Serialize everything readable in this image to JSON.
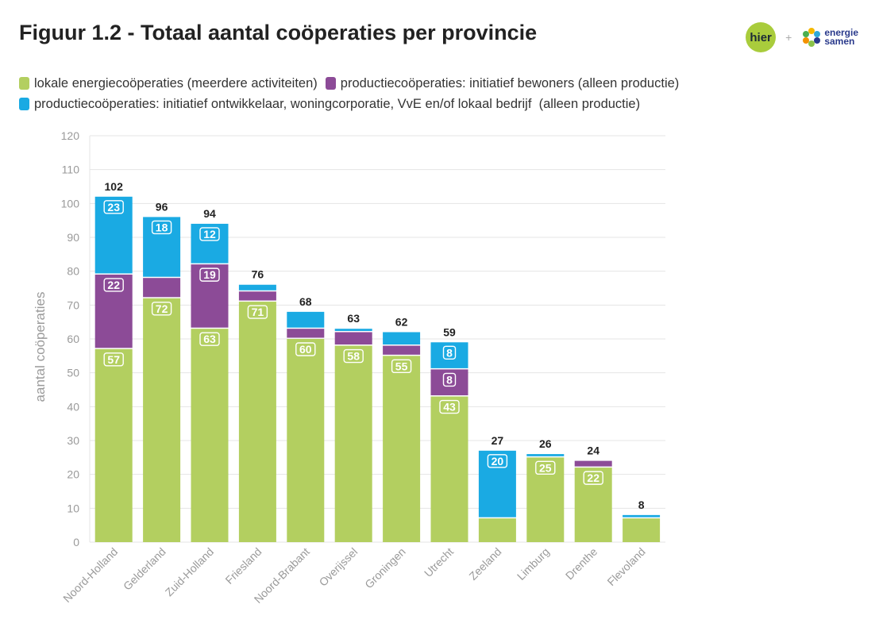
{
  "title": "Figuur 1.2 - Totaal aantal coöperaties per provincie",
  "logos": {
    "hier": "hier",
    "plus": "+",
    "energie_line1": "energie",
    "energie_line2": "samen"
  },
  "colors": {
    "green": "#b3cf60",
    "purple": "#8c4b97",
    "blue": "#1aaae3",
    "grid": "#e4e4e4",
    "tick": "#9a9a9a"
  },
  "chart_data": {
    "type": "bar",
    "stacked": true,
    "ylabel": "aantal coöperaties",
    "ylim": [
      0,
      120
    ],
    "yticks": [
      0,
      10,
      20,
      30,
      40,
      50,
      60,
      70,
      80,
      90,
      100,
      110,
      120
    ],
    "grid": true,
    "legend_position": "top",
    "categories": [
      "Noord-Holland",
      "Gelderland",
      "Zuid-Holland",
      "Friesland",
      "Noord-Brabant",
      "Overijssel",
      "Groningen",
      "Utrecht",
      "Zeeland",
      "Limburg",
      "Drenthe",
      "Flevoland"
    ],
    "series": [
      {
        "name": "lokale energiecoöperaties (meerdere activiteiten)",
        "color": "#b3cf60",
        "values": [
          57,
          72,
          63,
          71,
          60,
          58,
          55,
          43,
          7,
          25,
          22,
          7
        ],
        "labels": [
          "57",
          "72",
          "63",
          "71",
          "60",
          "58",
          "55",
          "43",
          "",
          "25",
          "22",
          ""
        ]
      },
      {
        "name": "productiecoöperaties: initiatief bewoners (alleen productie)",
        "color": "#8c4b97",
        "values": [
          22,
          6,
          19,
          3,
          3,
          4,
          3,
          8,
          0,
          0,
          2,
          0
        ],
        "labels": [
          "22",
          "",
          "19",
          "",
          "",
          "",
          "",
          "8",
          "",
          "",
          "",
          ""
        ]
      },
      {
        "name": "productiecoöperaties: initiatief ontwikkelaar, woningcorporatie, VvE en/of lokaal bedrijf  (alleen productie)",
        "color": "#1aaae3",
        "values": [
          23,
          18,
          12,
          2,
          5,
          1,
          4,
          8,
          20,
          1,
          0,
          1
        ],
        "labels": [
          "23",
          "18",
          "12",
          "",
          "",
          "",
          "",
          "8",
          "20",
          "",
          "",
          ""
        ]
      }
    ],
    "totals": [
      "102",
      "96",
      "94",
      "76",
      "68",
      "63",
      "62",
      "59",
      "27",
      "26",
      "24",
      "8"
    ]
  }
}
